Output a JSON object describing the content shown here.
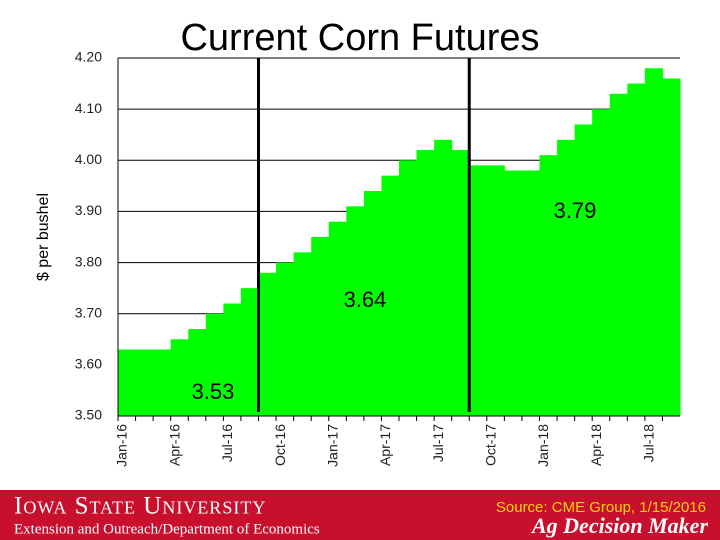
{
  "chart_data": {
    "type": "step-area",
    "title": "Current Corn Futures",
    "y_label": "$ per bushel",
    "categories": [
      "Jan-16",
      null,
      null,
      "Apr-16",
      null,
      null,
      "Jul-16",
      null,
      null,
      "Oct-16",
      null,
      null,
      "Jan-17",
      null,
      null,
      "Apr-17",
      null,
      null,
      "Jul-17",
      null,
      null,
      "Oct-17",
      null,
      null,
      "Jan-18",
      null,
      null,
      "Apr-18",
      null,
      null,
      "Jul-18",
      null
    ],
    "values": [
      3.63,
      3.63,
      3.63,
      3.65,
      3.67,
      3.7,
      3.72,
      3.75,
      3.78,
      3.8,
      3.82,
      3.85,
      3.88,
      3.91,
      3.94,
      3.97,
      4.0,
      4.02,
      4.04,
      4.02,
      3.99,
      3.99,
      3.98,
      3.98,
      4.01,
      4.04,
      4.07,
      4.1,
      4.13,
      4.15,
      4.18,
      4.16
    ],
    "color": "#00ff00",
    "ylim": [
      3.5,
      4.2
    ],
    "yticks": [
      {
        "value": 3.5,
        "label": "3.50"
      },
      {
        "value": 3.6,
        "label": "3.60"
      },
      {
        "value": 3.7,
        "label": "3.70"
      },
      {
        "value": 3.8,
        "label": "3.80"
      },
      {
        "value": 3.9,
        "label": "3.90"
      },
      {
        "value": 4.0,
        "label": "4.00"
      },
      {
        "value": 4.1,
        "label": "4.10"
      },
      {
        "value": 4.2,
        "label": "4.20"
      }
    ],
    "grid": true,
    "annotations": [
      "3.53",
      "3.64",
      "3.79"
    ]
  },
  "footer": {
    "university": "Iowa State University",
    "department": "Extension and Outreach/Department of Economics",
    "source": "Source: CME Group, 1/15/2016",
    "brand": "Ag Decision Maker"
  }
}
